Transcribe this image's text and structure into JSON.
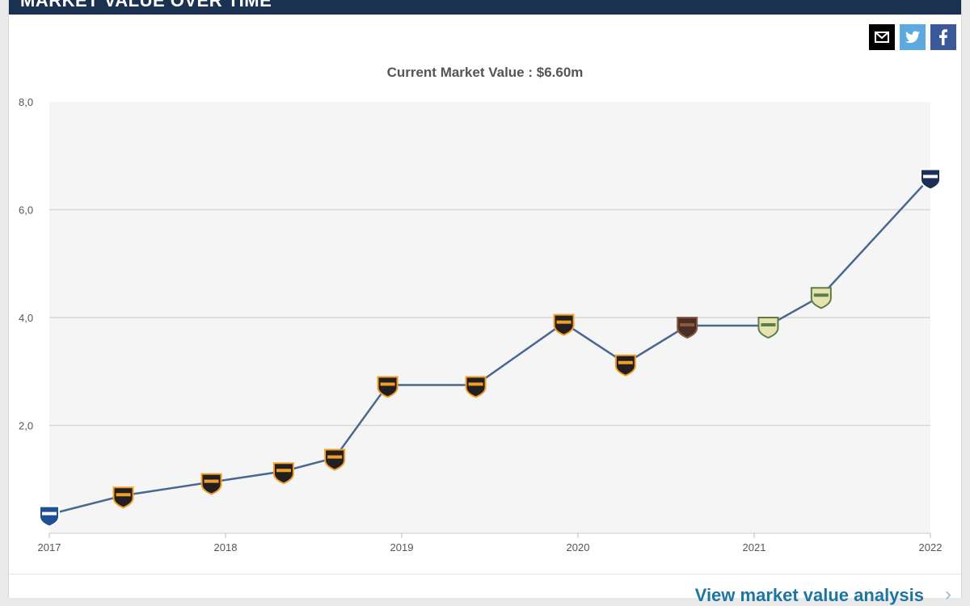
{
  "header": {
    "title": "MARKET VALUE OVER TIME"
  },
  "share": {
    "email_icon": "email-icon",
    "twitter_icon": "twitter-icon",
    "facebook_icon": "facebook-icon"
  },
  "colors": {
    "header_bg": "#1a3151",
    "line": "#4a6790",
    "grid": "#d7d7d7",
    "plot_bg": "#f5f5f5",
    "link": "#1d75a3"
  },
  "footer": {
    "link_text": "View market value analysis",
    "arrow": "›"
  },
  "chart_data": {
    "type": "line",
    "title": "Current Market Value : $6.60m",
    "xlabel": "",
    "ylabel": "",
    "x_ticks": [
      "2017",
      "2018",
      "2019",
      "2020",
      "2021",
      "2022"
    ],
    "y_ticks": [
      "8,0",
      "6,0",
      "4,0",
      "2,0"
    ],
    "xlim": [
      2017.0,
      2022.0
    ],
    "ylim": [
      0,
      8
    ],
    "grid": true,
    "series": [
      {
        "x": [
          2017.0,
          2017.42,
          2017.92,
          2018.33,
          2018.62,
          2018.92,
          2019.42,
          2019.92,
          2020.27,
          2020.62,
          2021.08,
          2021.38,
          2022.0
        ],
        "values": [
          0.35,
          0.7,
          0.95,
          1.15,
          1.4,
          2.75,
          2.75,
          3.9,
          3.15,
          3.85,
          3.85,
          4.4,
          6.6
        ],
        "markers": [
          "club-badge-blue",
          "club-badge-orange",
          "club-badge-orange",
          "club-badge-orange",
          "club-badge-orange",
          "club-badge-orange",
          "club-badge-orange",
          "club-badge-orange",
          "club-badge-orange",
          "club-badge-brown",
          "club-badge-green",
          "club-badge-green",
          "club-badge-navy"
        ]
      }
    ]
  }
}
